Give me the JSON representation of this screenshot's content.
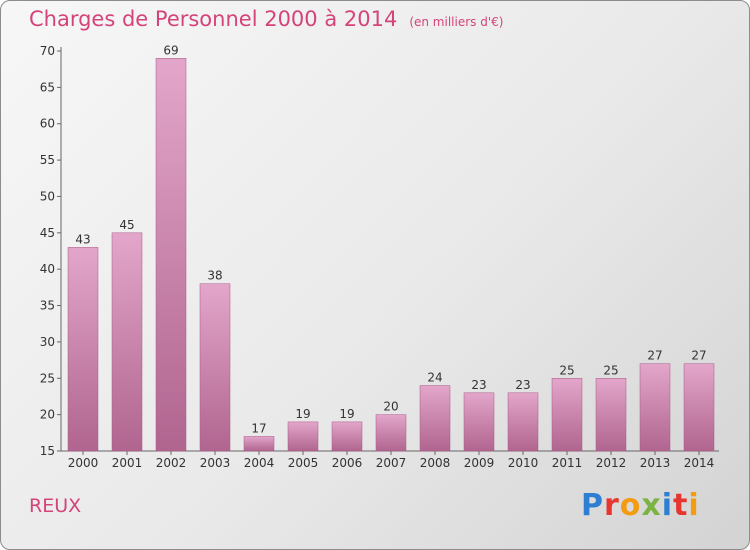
{
  "header": {
    "title": "Charges de Personnel 2000 à 2014",
    "subtitle": "(en milliers d'€)"
  },
  "footer": {
    "place": "REUX",
    "brand_letters": [
      "P",
      "r",
      "o",
      "x",
      "i",
      "t",
      "i"
    ],
    "brand_colors": [
      "#2e7fd1",
      "#e6362f",
      "#f39c12",
      "#7cb342",
      "#2e7fd1",
      "#e6362f",
      "#f39c12"
    ]
  },
  "chart_data": {
    "type": "bar",
    "categories": [
      "2000",
      "2001",
      "2002",
      "2003",
      "2004",
      "2005",
      "2006",
      "2007",
      "2008",
      "2009",
      "2010",
      "2011",
      "2012",
      "2013",
      "2014"
    ],
    "values": [
      43,
      45,
      69,
      38,
      17,
      19,
      19,
      20,
      24,
      23,
      23,
      25,
      25,
      27,
      27
    ],
    "data_labels": [
      "43",
      "45",
      "69",
      "38",
      "17",
      "19",
      "19",
      "20",
      "24",
      "23",
      "23",
      "25",
      "25",
      "27",
      "27"
    ],
    "y_ticks": [
      "15",
      "20",
      "25",
      "30",
      "35",
      "40",
      "45",
      "50",
      "55",
      "60",
      "65",
      "70"
    ],
    "ylim": [
      15,
      70
    ],
    "grid": false,
    "bar_color": "#c77aa6"
  }
}
